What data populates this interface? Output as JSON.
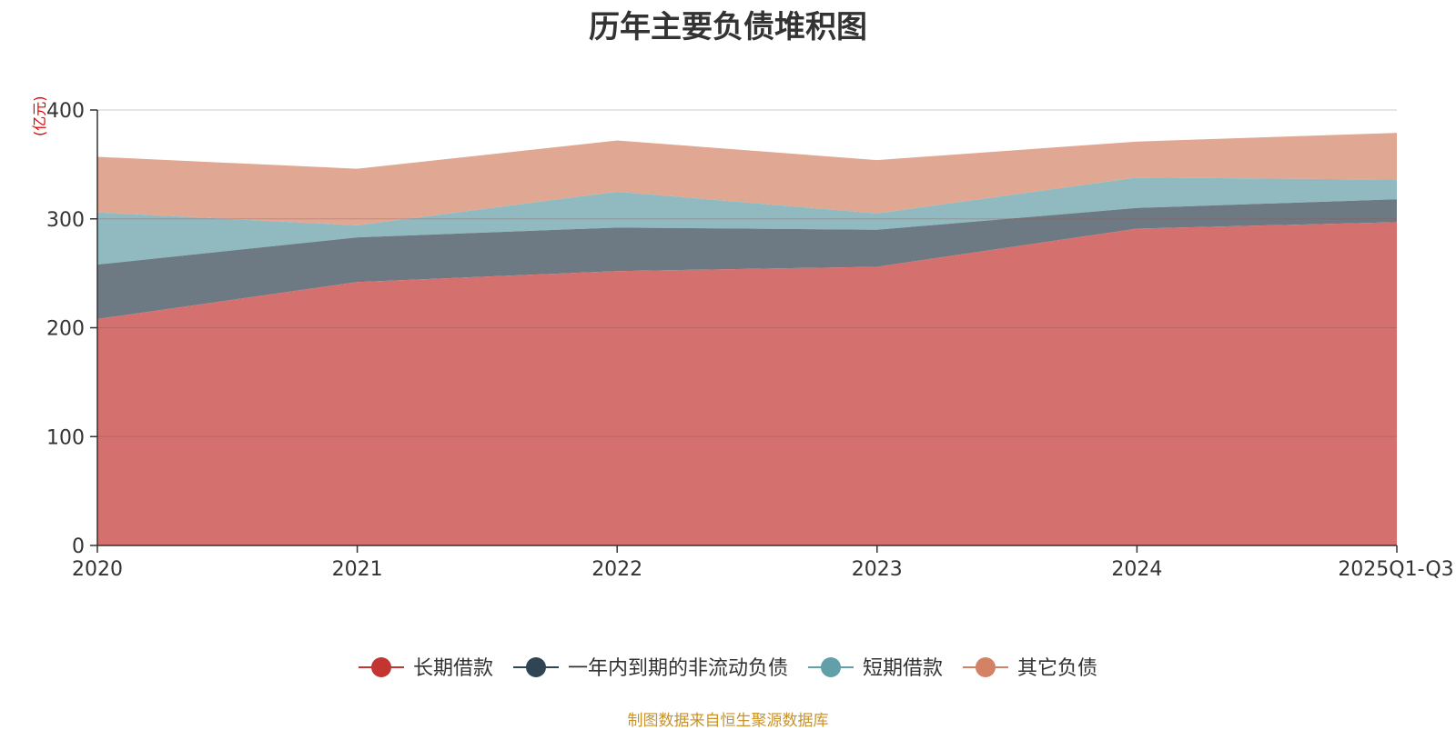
{
  "chart_data": {
    "type": "area",
    "stacked": true,
    "title": "历年主要负债堆积图",
    "unit_label": "(亿元)",
    "source": "制图数据来自恒生聚源数据库",
    "categories": [
      "2020",
      "2021",
      "2022",
      "2023",
      "2024",
      "2025Q1-Q3"
    ],
    "ylim": [
      0,
      400
    ],
    "yticks": [
      0,
      100,
      200,
      300,
      400
    ],
    "legend_position": "bottom",
    "series": [
      {
        "name": "长期借款",
        "values": [
          208,
          242,
          252,
          256,
          291,
          297
        ],
        "color": "#c23531",
        "fill": "#d4706d"
      },
      {
        "name": "一年内到期的非流动负债",
        "values": [
          50,
          41,
          40,
          34,
          19,
          21
        ],
        "color": "#2f4554",
        "fill": "#6d7a84"
      },
      {
        "name": "短期借款",
        "values": [
          48,
          11,
          33,
          15,
          28,
          18
        ],
        "color": "#61a0a8",
        "fill": "#90bac0"
      },
      {
        "name": "其它负债",
        "values": [
          51,
          52,
          47,
          49,
          33,
          43
        ],
        "color": "#d48265",
        "fill": "#e0a792"
      }
    ]
  }
}
